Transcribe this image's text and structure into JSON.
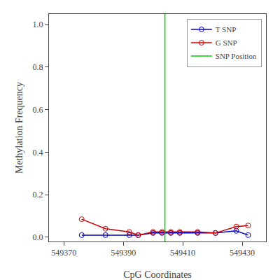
{
  "chart_data": {
    "type": "line",
    "xlabel": "CpG Coordinates",
    "ylabel": "Methylation Frequency",
    "x": [
      549376,
      549384,
      549392,
      549395,
      549400,
      549403,
      549406,
      549409,
      549415,
      549421,
      549428,
      549432
    ],
    "series": [
      {
        "name": "T SNP",
        "color": "#0000CC",
        "marker": "circle-open",
        "line_style": "solid",
        "values": [
          0.01,
          0.01,
          0.01,
          0.01,
          0.02,
          0.02,
          0.02,
          0.02,
          0.02,
          0.02,
          0.03,
          0.01
        ]
      },
      {
        "name": "G SNP",
        "color": "#CC0000",
        "marker": "circle-open",
        "line_style": "solid",
        "values": [
          0.085,
          0.04,
          0.025,
          0.01,
          0.025,
          0.025,
          0.025,
          0.025,
          0.025,
          0.02,
          0.05,
          0.055
        ]
      },
      {
        "name": "SNP Position",
        "type": "vline",
        "color": "#00CC00",
        "line_style": "solid",
        "x": 549404
      }
    ],
    "xlim": [
      549365,
      549438
    ],
    "ylim": [
      -0.02,
      1.05
    ],
    "xticks": [
      549370,
      549390,
      549410,
      549430
    ],
    "yticks": [
      {
        "value": 0.0,
        "label": "0.0"
      },
      0.2,
      0.4,
      0.6,
      0.8,
      {
        "value": 1.0,
        "label": "1.0"
      }
    ],
    "grid": false,
    "legend": "upper right"
  }
}
